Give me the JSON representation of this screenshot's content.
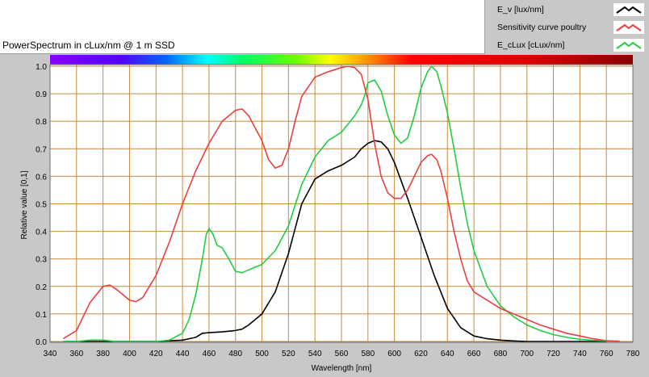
{
  "chart_data": {
    "type": "line",
    "title": "PowerSpectrum in cLux/nm @ 1 m SSD",
    "xlabel": "Wavelength [nm]",
    "ylabel": "Relative value [0,1]",
    "xlim": [
      340,
      780
    ],
    "ylim": [
      0,
      1
    ],
    "xticks": [
      "340",
      "360",
      "380",
      "400",
      "420",
      "440",
      "460",
      "480",
      "500",
      "520",
      "540",
      "560",
      "580",
      "600",
      "620",
      "640",
      "660",
      "680",
      "700",
      "720",
      "740",
      "760",
      "780"
    ],
    "yticks": [
      "0.0",
      "0.1",
      "0.2",
      "0.3",
      "0.4",
      "0.5",
      "0.6",
      "0.7",
      "0.8",
      "0.9",
      "1.0"
    ],
    "grid": true,
    "legend_position": "top-right",
    "series": [
      {
        "name": "E_v [lux/nm]",
        "color": "#000000",
        "x": [
          350,
          360,
          380,
          400,
          420,
          440,
          450,
          455,
          460,
          470,
          480,
          485,
          490,
          500,
          510,
          520,
          530,
          540,
          550,
          560,
          570,
          575,
          580,
          585,
          590,
          595,
          600,
          610,
          620,
          630,
          640,
          650,
          660,
          670,
          680,
          690,
          700,
          720,
          740,
          760
        ],
        "y": [
          0,
          0,
          0,
          0,
          0,
          0.005,
          0.015,
          0.03,
          0.032,
          0.035,
          0.04,
          0.045,
          0.06,
          0.1,
          0.18,
          0.32,
          0.5,
          0.59,
          0.62,
          0.64,
          0.67,
          0.7,
          0.72,
          0.73,
          0.725,
          0.7,
          0.65,
          0.52,
          0.38,
          0.24,
          0.12,
          0.05,
          0.02,
          0.01,
          0.005,
          0.002,
          0,
          0,
          0,
          0
        ]
      },
      {
        "name": "Sensitivity curve poultry",
        "color": "#e84040",
        "x": [
          350,
          360,
          370,
          380,
          385,
          390,
          400,
          405,
          410,
          420,
          430,
          440,
          450,
          460,
          470,
          480,
          485,
          490,
          500,
          505,
          510,
          515,
          520,
          525,
          530,
          540,
          550,
          560,
          565,
          570,
          575,
          580,
          585,
          590,
          595,
          600,
          605,
          610,
          615,
          620,
          625,
          628,
          632,
          635,
          640,
          645,
          650,
          655,
          660,
          670,
          680,
          690,
          700,
          710,
          720,
          730,
          740,
          750,
          760,
          770
        ],
        "y": [
          0.01,
          0.04,
          0.14,
          0.2,
          0.205,
          0.19,
          0.15,
          0.145,
          0.16,
          0.24,
          0.36,
          0.5,
          0.62,
          0.72,
          0.8,
          0.84,
          0.845,
          0.82,
          0.73,
          0.66,
          0.63,
          0.64,
          0.7,
          0.8,
          0.89,
          0.96,
          0.98,
          0.995,
          1.0,
          0.995,
          0.97,
          0.88,
          0.72,
          0.6,
          0.54,
          0.52,
          0.52,
          0.55,
          0.6,
          0.65,
          0.675,
          0.68,
          0.66,
          0.62,
          0.52,
          0.4,
          0.3,
          0.22,
          0.18,
          0.15,
          0.12,
          0.1,
          0.08,
          0.06,
          0.045,
          0.03,
          0.02,
          0.01,
          0.003,
          0.001
        ]
      },
      {
        "name": "E_cLux [cLux/nm]",
        "color": "#22cc44",
        "x": [
          350,
          360,
          370,
          380,
          390,
          400,
          410,
          420,
          430,
          440,
          445,
          450,
          455,
          458,
          460,
          463,
          466,
          470,
          475,
          480,
          485,
          490,
          500,
          510,
          520,
          530,
          540,
          550,
          560,
          565,
          570,
          575,
          578,
          580,
          585,
          590,
          595,
          600,
          605,
          610,
          615,
          620,
          625,
          628,
          632,
          635,
          640,
          645,
          650,
          655,
          660,
          670,
          680,
          690,
          700,
          710,
          720,
          730,
          740,
          750,
          760
        ],
        "y": [
          0,
          0,
          0.005,
          0.005,
          0,
          0,
          0,
          0,
          0.005,
          0.03,
          0.08,
          0.17,
          0.3,
          0.39,
          0.41,
          0.39,
          0.35,
          0.34,
          0.3,
          0.255,
          0.25,
          0.26,
          0.28,
          0.33,
          0.42,
          0.57,
          0.67,
          0.73,
          0.76,
          0.79,
          0.82,
          0.86,
          0.9,
          0.94,
          0.95,
          0.91,
          0.82,
          0.75,
          0.72,
          0.74,
          0.82,
          0.92,
          0.98,
          1.0,
          0.98,
          0.93,
          0.83,
          0.7,
          0.56,
          0.43,
          0.33,
          0.2,
          0.13,
          0.09,
          0.06,
          0.04,
          0.025,
          0.015,
          0.008,
          0.004,
          0.002
        ]
      }
    ]
  }
}
